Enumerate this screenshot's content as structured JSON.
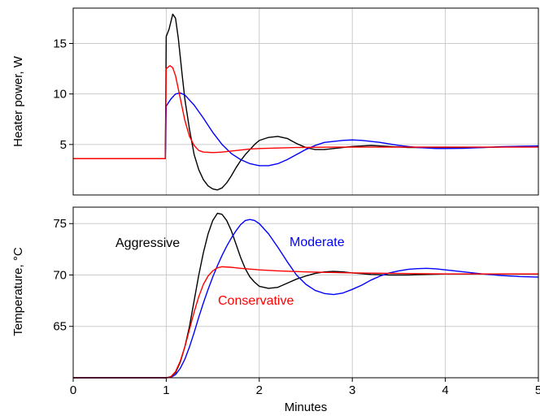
{
  "chart_data": [
    {
      "type": "line",
      "panel": "top",
      "xlabel": "",
      "ylabel": "Heater power, W",
      "xlim": [
        0,
        5
      ],
      "ylim": [
        0,
        18.5
      ],
      "yticks": [
        5,
        10,
        15
      ],
      "xticks": [
        0,
        1,
        2,
        3,
        4,
        5
      ],
      "grid": true,
      "series": [
        {
          "key": "aggressive",
          "color": "#000000",
          "points": [
            [
              0,
              3.6
            ],
            [
              0.99,
              3.6
            ],
            [
              1.0,
              15.7
            ],
            [
              1.03,
              16.4
            ],
            [
              1.07,
              17.9
            ],
            [
              1.1,
              17.5
            ],
            [
              1.13,
              15.5
            ],
            [
              1.17,
              12.0
            ],
            [
              1.2,
              9.5
            ],
            [
              1.25,
              6.5
            ],
            [
              1.3,
              4.0
            ],
            [
              1.35,
              2.5
            ],
            [
              1.4,
              1.5
            ],
            [
              1.45,
              0.9
            ],
            [
              1.5,
              0.6
            ],
            [
              1.55,
              0.5
            ],
            [
              1.6,
              0.7
            ],
            [
              1.65,
              1.2
            ],
            [
              1.7,
              1.9
            ],
            [
              1.75,
              2.7
            ],
            [
              1.8,
              3.4
            ],
            [
              1.85,
              4.0
            ],
            [
              1.9,
              4.5
            ],
            [
              1.95,
              5.0
            ],
            [
              2.0,
              5.4
            ],
            [
              2.1,
              5.7
            ],
            [
              2.2,
              5.8
            ],
            [
              2.3,
              5.6
            ],
            [
              2.4,
              5.1
            ],
            [
              2.5,
              4.7
            ],
            [
              2.6,
              4.5
            ],
            [
              2.7,
              4.5
            ],
            [
              2.8,
              4.6
            ],
            [
              2.9,
              4.7
            ],
            [
              3.0,
              4.8
            ],
            [
              3.2,
              4.9
            ],
            [
              3.4,
              4.8
            ],
            [
              3.6,
              4.7
            ],
            [
              3.8,
              4.7
            ],
            [
              4.0,
              4.7
            ],
            [
              4.2,
              4.7
            ],
            [
              4.4,
              4.7
            ],
            [
              4.6,
              4.75
            ],
            [
              4.8,
              4.8
            ],
            [
              5.0,
              4.8
            ]
          ]
        },
        {
          "key": "moderate",
          "color": "#0000ff",
          "points": [
            [
              0,
              3.6
            ],
            [
              0.99,
              3.6
            ],
            [
              1.0,
              8.8
            ],
            [
              1.05,
              9.5
            ],
            [
              1.1,
              10.0
            ],
            [
              1.15,
              10.1
            ],
            [
              1.2,
              9.9
            ],
            [
              1.3,
              8.9
            ],
            [
              1.4,
              7.6
            ],
            [
              1.5,
              6.2
            ],
            [
              1.6,
              5.0
            ],
            [
              1.7,
              4.1
            ],
            [
              1.8,
              3.5
            ],
            [
              1.9,
              3.1
            ],
            [
              2.0,
              2.9
            ],
            [
              2.1,
              2.9
            ],
            [
              2.2,
              3.1
            ],
            [
              2.3,
              3.5
            ],
            [
              2.4,
              4.0
            ],
            [
              2.5,
              4.5
            ],
            [
              2.6,
              4.9
            ],
            [
              2.7,
              5.2
            ],
            [
              2.8,
              5.3
            ],
            [
              2.9,
              5.4
            ],
            [
              3.0,
              5.45
            ],
            [
              3.1,
              5.4
            ],
            [
              3.2,
              5.3
            ],
            [
              3.3,
              5.2
            ],
            [
              3.4,
              5.05
            ],
            [
              3.5,
              4.9
            ],
            [
              3.6,
              4.8
            ],
            [
              3.7,
              4.7
            ],
            [
              3.8,
              4.65
            ],
            [
              3.9,
              4.6
            ],
            [
              4.0,
              4.6
            ],
            [
              4.2,
              4.62
            ],
            [
              4.4,
              4.7
            ],
            [
              4.6,
              4.78
            ],
            [
              4.8,
              4.82
            ],
            [
              5.0,
              4.85
            ]
          ]
        },
        {
          "key": "conservative",
          "color": "#ff0000",
          "points": [
            [
              0,
              3.6
            ],
            [
              0.99,
              3.6
            ],
            [
              1.0,
              12.5
            ],
            [
              1.04,
              12.8
            ],
            [
              1.07,
              12.6
            ],
            [
              1.1,
              11.8
            ],
            [
              1.15,
              9.6
            ],
            [
              1.2,
              7.4
            ],
            [
              1.25,
              5.8
            ],
            [
              1.3,
              4.9
            ],
            [
              1.35,
              4.4
            ],
            [
              1.4,
              4.25
            ],
            [
              1.5,
              4.2
            ],
            [
              1.6,
              4.25
            ],
            [
              1.7,
              4.35
            ],
            [
              1.8,
              4.45
            ],
            [
              1.9,
              4.55
            ],
            [
              2.0,
              4.6
            ],
            [
              2.2,
              4.65
            ],
            [
              2.4,
              4.7
            ],
            [
              2.6,
              4.72
            ],
            [
              2.8,
              4.74
            ],
            [
              3.0,
              4.74
            ],
            [
              3.5,
              4.74
            ],
            [
              4.0,
              4.74
            ],
            [
              4.5,
              4.74
            ],
            [
              5.0,
              4.74
            ]
          ]
        }
      ]
    },
    {
      "type": "line",
      "panel": "bottom",
      "xlabel": "Minutes",
      "ylabel": "Temperature, °C",
      "xlim": [
        0,
        5
      ],
      "ylim": [
        60,
        76.6
      ],
      "yticks": [
        65,
        70,
        75
      ],
      "xticks": [
        0,
        1,
        2,
        3,
        4,
        5
      ],
      "grid": true,
      "series": [
        {
          "key": "aggressive",
          "name": "Aggressive",
          "color": "#000000",
          "points": [
            [
              0,
              60.0
            ],
            [
              1.0,
              60.0
            ],
            [
              1.05,
              60.1
            ],
            [
              1.1,
              60.5
            ],
            [
              1.15,
              61.5
            ],
            [
              1.2,
              63.0
            ],
            [
              1.25,
              65.0
            ],
            [
              1.3,
              67.5
            ],
            [
              1.35,
              70.0
            ],
            [
              1.4,
              72.2
            ],
            [
              1.45,
              74.0
            ],
            [
              1.5,
              75.3
            ],
            [
              1.55,
              76.0
            ],
            [
              1.6,
              75.9
            ],
            [
              1.65,
              75.3
            ],
            [
              1.7,
              74.3
            ],
            [
              1.75,
              73.0
            ],
            [
              1.8,
              71.7
            ],
            [
              1.85,
              70.6
            ],
            [
              1.9,
              69.8
            ],
            [
              1.95,
              69.3
            ],
            [
              2.0,
              68.9
            ],
            [
              2.1,
              68.7
            ],
            [
              2.2,
              68.8
            ],
            [
              2.3,
              69.2
            ],
            [
              2.4,
              69.6
            ],
            [
              2.5,
              69.9
            ],
            [
              2.6,
              70.15
            ],
            [
              2.7,
              70.3
            ],
            [
              2.8,
              70.35
            ],
            [
              2.9,
              70.3
            ],
            [
              3.0,
              70.2
            ],
            [
              3.2,
              70.05
            ],
            [
              3.4,
              70.0
            ],
            [
              3.6,
              70.0
            ],
            [
              3.8,
              70.05
            ],
            [
              4.0,
              70.1
            ],
            [
              4.5,
              70.1
            ],
            [
              5.0,
              70.1
            ]
          ]
        },
        {
          "key": "moderate",
          "name": "Moderate",
          "color": "#0000ff",
          "points": [
            [
              0,
              60.0
            ],
            [
              1.0,
              60.0
            ],
            [
              1.05,
              60.05
            ],
            [
              1.1,
              60.3
            ],
            [
              1.15,
              60.9
            ],
            [
              1.2,
              61.8
            ],
            [
              1.25,
              63.0
            ],
            [
              1.3,
              64.4
            ],
            [
              1.35,
              65.9
            ],
            [
              1.4,
              67.3
            ],
            [
              1.45,
              68.6
            ],
            [
              1.5,
              69.8
            ],
            [
              1.55,
              70.9
            ],
            [
              1.6,
              71.9
            ],
            [
              1.65,
              72.8
            ],
            [
              1.7,
              73.6
            ],
            [
              1.75,
              74.3
            ],
            [
              1.8,
              74.9
            ],
            [
              1.85,
              75.3
            ],
            [
              1.9,
              75.4
            ],
            [
              1.95,
              75.3
            ],
            [
              2.0,
              75.0
            ],
            [
              2.1,
              74.0
            ],
            [
              2.2,
              72.7
            ],
            [
              2.3,
              71.3
            ],
            [
              2.4,
              70.0
            ],
            [
              2.5,
              69.1
            ],
            [
              2.6,
              68.5
            ],
            [
              2.7,
              68.2
            ],
            [
              2.8,
              68.1
            ],
            [
              2.9,
              68.25
            ],
            [
              3.0,
              68.6
            ],
            [
              3.1,
              69.0
            ],
            [
              3.2,
              69.5
            ],
            [
              3.3,
              69.9
            ],
            [
              3.4,
              70.2
            ],
            [
              3.5,
              70.4
            ],
            [
              3.6,
              70.55
            ],
            [
              3.7,
              70.62
            ],
            [
              3.8,
              70.65
            ],
            [
              3.9,
              70.6
            ],
            [
              4.0,
              70.5
            ],
            [
              4.2,
              70.3
            ],
            [
              4.4,
              70.1
            ],
            [
              4.6,
              69.95
            ],
            [
              4.8,
              69.85
            ],
            [
              5.0,
              69.8
            ]
          ]
        },
        {
          "key": "conservative",
          "name": "Conservative",
          "color": "#ff0000",
          "points": [
            [
              0,
              60.0
            ],
            [
              1.0,
              60.0
            ],
            [
              1.05,
              60.1
            ],
            [
              1.1,
              60.6
            ],
            [
              1.15,
              61.6
            ],
            [
              1.2,
              63.0
            ],
            [
              1.25,
              64.7
            ],
            [
              1.3,
              66.4
            ],
            [
              1.35,
              67.9
            ],
            [
              1.4,
              69.1
            ],
            [
              1.45,
              69.9
            ],
            [
              1.5,
              70.4
            ],
            [
              1.55,
              70.7
            ],
            [
              1.6,
              70.8
            ],
            [
              1.7,
              70.75
            ],
            [
              1.8,
              70.65
            ],
            [
              2.0,
              70.5
            ],
            [
              2.2,
              70.4
            ],
            [
              2.5,
              70.3
            ],
            [
              3.0,
              70.2
            ],
            [
              3.5,
              70.15
            ],
            [
              4.0,
              70.1
            ],
            [
              4.5,
              70.1
            ],
            [
              5.0,
              70.1
            ]
          ]
        }
      ]
    }
  ],
  "annotations": {
    "aggressive": "Aggressive",
    "moderate": "Moderate",
    "conservative": "Conservative"
  }
}
